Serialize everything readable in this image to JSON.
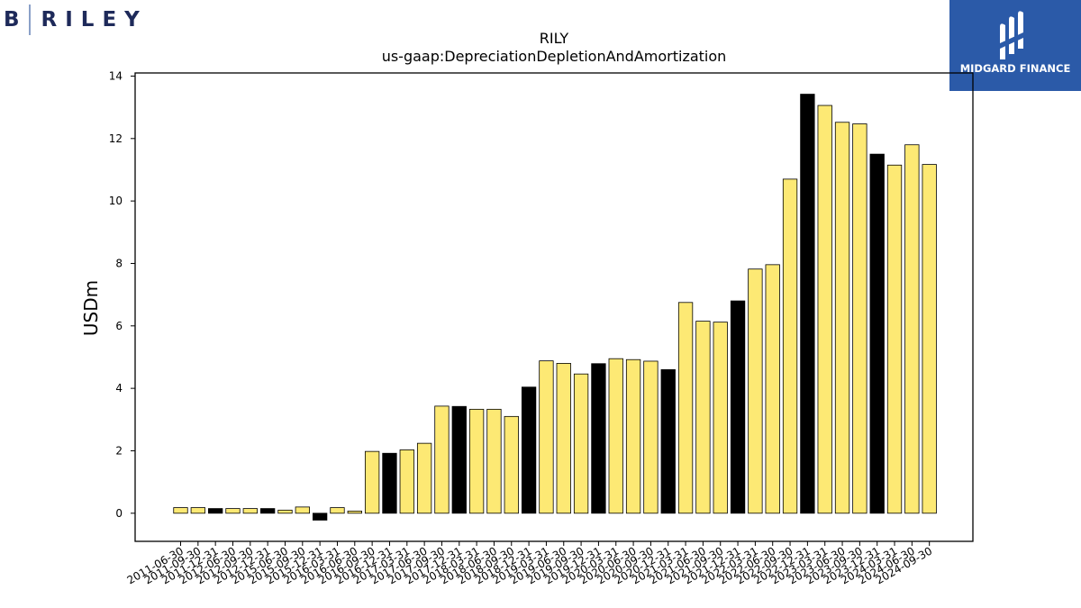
{
  "branding": {
    "left_logo_b": "B",
    "left_logo_text": "RILEY",
    "right_logo_text": "MIDGARD FINANCE",
    "right_logo_bg": "#2b5aa8"
  },
  "chart_data": {
    "type": "bar",
    "title": "RILY",
    "subtitle": "us-gaap:DepreciationDepletionAndAmortization",
    "xlabel": "",
    "ylabel": "USDm",
    "ylim": [
      -0.9,
      14.1
    ],
    "yticks": [
      0,
      2,
      4,
      6,
      8,
      10,
      12,
      14
    ],
    "grid": false,
    "colors": {
      "quarter": "#fde974",
      "year_end": "#000000",
      "edge": "#000000"
    },
    "categories": [
      "2011-06-30",
      "2011-09-30",
      "2011-12-31",
      "2012-06-30",
      "2012-09-30",
      "2012-12-31",
      "2015-06-30",
      "2015-09-30",
      "2015-12-31",
      "2016-03-31",
      "2016-06-30",
      "2016-09-30",
      "2016-12-31",
      "2017-03-31",
      "2017-06-30",
      "2017-09-30",
      "2017-12-31",
      "2018-03-31",
      "2018-06-30",
      "2018-09-30",
      "2018-12-31",
      "2019-03-31",
      "2019-06-30",
      "2019-09-30",
      "2019-12-31",
      "2020-03-31",
      "2020-06-30",
      "2020-09-30",
      "2020-12-31",
      "2021-03-31",
      "2021-06-30",
      "2021-09-30",
      "2021-12-31",
      "2022-03-31",
      "2022-06-30",
      "2022-09-30",
      "2022-12-31",
      "2023-03-31",
      "2023-06-30",
      "2023-09-30",
      "2023-12-31",
      "2024-03-31",
      "2024-06-30",
      "2024-09-30"
    ],
    "values": [
      0.18,
      0.18,
      0.15,
      0.15,
      0.15,
      0.15,
      0.1,
      0.2,
      -0.22,
      0.18,
      0.07,
      1.98,
      1.92,
      2.03,
      2.24,
      3.43,
      3.42,
      3.33,
      3.33,
      3.1,
      4.04,
      4.88,
      4.8,
      4.46,
      4.79,
      4.95,
      4.92,
      4.87,
      4.6,
      6.75,
      6.15,
      6.12,
      6.8,
      7.82,
      7.96,
      10.7,
      13.42,
      13.06,
      12.52,
      12.47,
      11.5,
      11.15,
      11.8,
      11.17
    ],
    "year_end": [
      false,
      false,
      true,
      false,
      false,
      true,
      false,
      false,
      true,
      false,
      false,
      false,
      true,
      false,
      false,
      false,
      true,
      false,
      false,
      false,
      true,
      false,
      false,
      false,
      true,
      false,
      false,
      false,
      true,
      false,
      false,
      false,
      true,
      false,
      false,
      false,
      true,
      false,
      false,
      false,
      true,
      false,
      false,
      false
    ]
  }
}
